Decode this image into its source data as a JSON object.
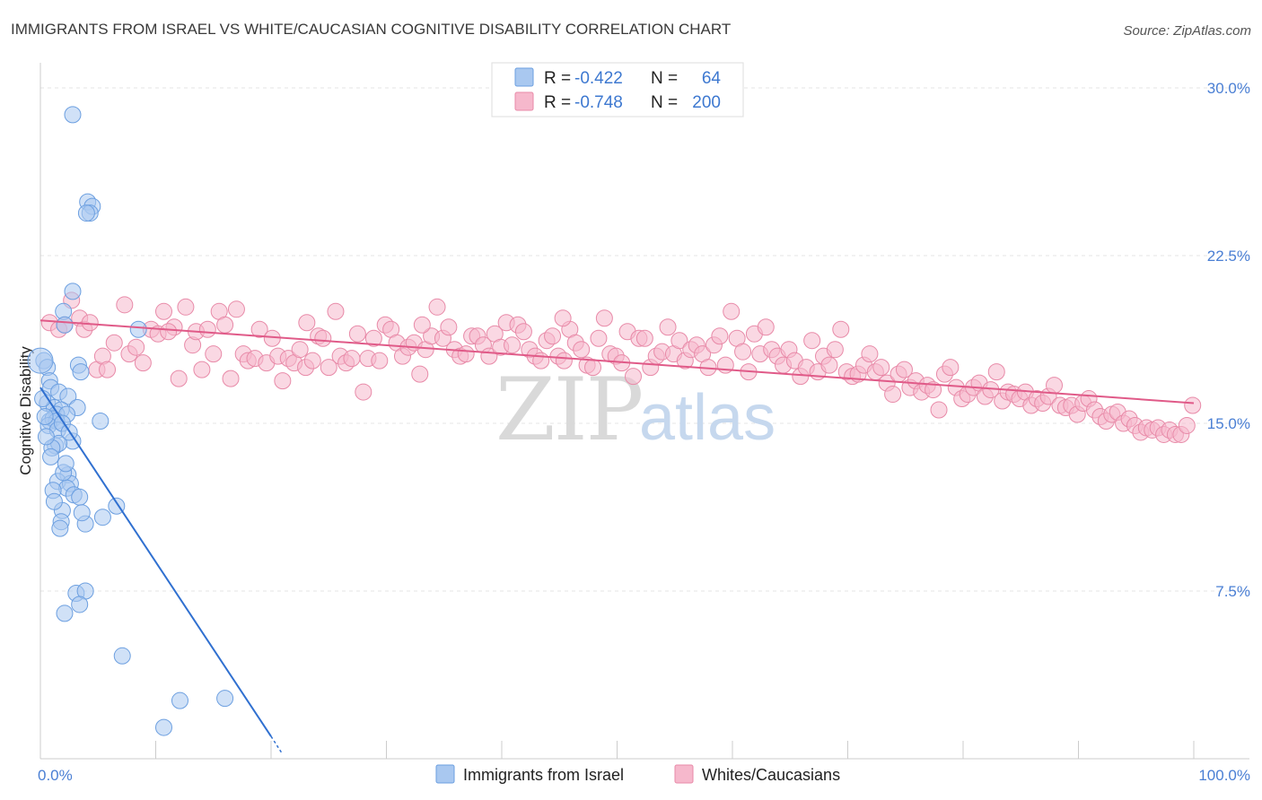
{
  "title": "IMMIGRANTS FROM ISRAEL VS WHITE/CAUCASIAN COGNITIVE DISABILITY CORRELATION CHART",
  "source": "Source: ZipAtlas.com",
  "watermark": {
    "part1": "ZIP",
    "part2": "atlas"
  },
  "colors": {
    "blue_fill": "#a9c8f0",
    "blue_stroke": "#6c9fe0",
    "blue_line": "#3070d0",
    "pink_fill": "#f6b8cc",
    "pink_stroke": "#e88aa8",
    "pink_line": "#e05a88",
    "axis_text": "#4a7fd4",
    "grid": "#e4e4e4"
  },
  "legend": {
    "rows": [
      {
        "r_label": "R = ",
        "r_value": "-0.422",
        "n_label": "N = ",
        "n_value": "64"
      },
      {
        "r_label": "R = ",
        "r_value": "-0.748",
        "n_label": "N = ",
        "n_value": "200"
      }
    ]
  },
  "bottom_legend": [
    "Immigrants from Israel",
    "Whites/Caucasians"
  ],
  "chart_data": {
    "type": "scatter",
    "title": "IMMIGRANTS FROM ISRAEL VS WHITE/CAUCASIAN COGNITIVE DISABILITY CORRELATION CHART",
    "xlabel": "",
    "ylabel": "Cognitive Disability",
    "xlim": [
      0,
      100
    ],
    "ylim": [
      0,
      30.8
    ],
    "y_ticks": [
      7.5,
      15.0,
      22.5,
      30.0
    ],
    "y_tick_labels": [
      "7.5%",
      "15.0%",
      "22.5%",
      "30.0%"
    ],
    "x_tick_labels": [
      "0.0%",
      "100.0%"
    ],
    "series": [
      {
        "name": "Immigrants from Israel",
        "R": -0.422,
        "N": 64,
        "points": [
          [
            2.8,
            28.8
          ],
          [
            4.1,
            24.9
          ],
          [
            4.5,
            24.7
          ],
          [
            4.3,
            24.4
          ],
          [
            4.0,
            24.4
          ],
          [
            2.8,
            20.9
          ],
          [
            2.0,
            20.0
          ],
          [
            2.1,
            19.4
          ],
          [
            8.5,
            19.2
          ],
          [
            0.3,
            17.8
          ],
          [
            0.6,
            17.5
          ],
          [
            3.3,
            17.6
          ],
          [
            3.5,
            17.3
          ],
          [
            0.8,
            16.9
          ],
          [
            0.9,
            16.6
          ],
          [
            1.6,
            16.4
          ],
          [
            2.4,
            16.2
          ],
          [
            0.6,
            15.9
          ],
          [
            1.2,
            15.7
          ],
          [
            1.8,
            15.6
          ],
          [
            3.2,
            15.7
          ],
          [
            1.4,
            15.4
          ],
          [
            2.3,
            15.4
          ],
          [
            0.8,
            15.1
          ],
          [
            1.1,
            15.2
          ],
          [
            1.4,
            15.1
          ],
          [
            5.2,
            15.1
          ],
          [
            0.7,
            14.9
          ],
          [
            1.5,
            14.7
          ],
          [
            2.8,
            14.2
          ],
          [
            1.3,
            14.0
          ],
          [
            1.6,
            14.1
          ],
          [
            1.0,
            13.9
          ],
          [
            2.4,
            12.7
          ],
          [
            1.5,
            12.4
          ],
          [
            2.6,
            12.3
          ],
          [
            2.3,
            12.1
          ],
          [
            1.1,
            12.0
          ],
          [
            2.9,
            11.8
          ],
          [
            3.4,
            11.7
          ],
          [
            6.6,
            11.3
          ],
          [
            1.9,
            11.1
          ],
          [
            5.4,
            10.8
          ],
          [
            1.8,
            10.6
          ],
          [
            3.9,
            10.5
          ],
          [
            1.7,
            10.3
          ],
          [
            3.1,
            7.4
          ],
          [
            3.9,
            7.5
          ],
          [
            3.4,
            6.9
          ],
          [
            2.1,
            6.5
          ],
          [
            7.1,
            4.6
          ],
          [
            12.1,
            2.6
          ],
          [
            16.0,
            2.7
          ],
          [
            10.7,
            1.4
          ],
          [
            0.2,
            16.1
          ],
          [
            0.4,
            15.3
          ],
          [
            1.9,
            15.0
          ],
          [
            2.5,
            14.6
          ],
          [
            0.9,
            13.5
          ],
          [
            2.0,
            12.8
          ],
          [
            1.2,
            11.5
          ],
          [
            3.6,
            11.0
          ],
          [
            0.5,
            14.4
          ],
          [
            2.2,
            13.2
          ]
        ],
        "trend": {
          "x0": 0,
          "y0": 16.6,
          "x1": 20.0,
          "y1": 1.0,
          "dash_to_x": 21.0,
          "dash_to_y": 0.2
        }
      },
      {
        "name": "Whites/Caucasians",
        "R": -0.748,
        "N": 200,
        "trend": {
          "x0": 0,
          "y0": 19.6,
          "x1": 100,
          "y1": 15.9
        },
        "points": [
          [
            0.8,
            19.5
          ],
          [
            1.6,
            19.2
          ],
          [
            2.1,
            19.4
          ],
          [
            2.7,
            20.5
          ],
          [
            3.4,
            19.7
          ],
          [
            3.8,
            19.2
          ],
          [
            4.3,
            19.5
          ],
          [
            4.9,
            17.4
          ],
          [
            5.4,
            18.0
          ],
          [
            5.8,
            17.4
          ],
          [
            6.4,
            18.6
          ],
          [
            7.3,
            20.3
          ],
          [
            7.7,
            18.1
          ],
          [
            8.3,
            18.4
          ],
          [
            8.9,
            17.7
          ],
          [
            9.6,
            19.2
          ],
          [
            10.2,
            19.0
          ],
          [
            10.7,
            20.0
          ],
          [
            11.6,
            19.3
          ],
          [
            12.0,
            17.0
          ],
          [
            12.6,
            20.2
          ],
          [
            13.2,
            18.5
          ],
          [
            13.5,
            19.1
          ],
          [
            14.0,
            17.4
          ],
          [
            14.5,
            19.2
          ],
          [
            15.0,
            18.1
          ],
          [
            15.5,
            20.0
          ],
          [
            16.0,
            19.4
          ],
          [
            16.5,
            17.0
          ],
          [
            17.0,
            20.1
          ],
          [
            17.6,
            18.1
          ],
          [
            18.0,
            17.8
          ],
          [
            18.6,
            17.9
          ],
          [
            19.0,
            19.2
          ],
          [
            19.6,
            17.7
          ],
          [
            20.1,
            18.8
          ],
          [
            20.6,
            18.0
          ],
          [
            21.0,
            16.9
          ],
          [
            21.5,
            17.9
          ],
          [
            22.0,
            17.7
          ],
          [
            22.5,
            18.3
          ],
          [
            23.0,
            17.5
          ],
          [
            23.6,
            17.8
          ],
          [
            24.1,
            18.9
          ],
          [
            24.5,
            18.8
          ],
          [
            25.0,
            17.5
          ],
          [
            25.6,
            20.0
          ],
          [
            26.0,
            18.0
          ],
          [
            26.5,
            17.7
          ],
          [
            27.0,
            17.9
          ],
          [
            27.5,
            19.0
          ],
          [
            28.0,
            16.4
          ],
          [
            28.4,
            17.9
          ],
          [
            28.9,
            18.8
          ],
          [
            29.4,
            17.8
          ],
          [
            29.9,
            19.4
          ],
          [
            30.4,
            19.2
          ],
          [
            30.9,
            18.6
          ],
          [
            31.4,
            18.0
          ],
          [
            31.9,
            18.4
          ],
          [
            32.4,
            18.6
          ],
          [
            32.9,
            17.2
          ],
          [
            33.4,
            18.3
          ],
          [
            33.9,
            18.9
          ],
          [
            34.4,
            20.2
          ],
          [
            34.9,
            18.8
          ],
          [
            35.4,
            19.3
          ],
          [
            35.9,
            18.3
          ],
          [
            36.4,
            18.0
          ],
          [
            36.9,
            18.1
          ],
          [
            37.4,
            18.9
          ],
          [
            37.9,
            18.9
          ],
          [
            38.4,
            18.5
          ],
          [
            38.9,
            18.0
          ],
          [
            39.4,
            19.0
          ],
          [
            39.9,
            18.4
          ],
          [
            40.4,
            19.5
          ],
          [
            40.9,
            18.5
          ],
          [
            41.4,
            19.4
          ],
          [
            41.9,
            19.1
          ],
          [
            42.4,
            18.3
          ],
          [
            42.9,
            18.0
          ],
          [
            43.4,
            17.8
          ],
          [
            43.9,
            18.7
          ],
          [
            44.4,
            18.9
          ],
          [
            44.9,
            18.0
          ],
          [
            45.4,
            17.8
          ],
          [
            45.9,
            19.2
          ],
          [
            46.4,
            18.6
          ],
          [
            46.9,
            18.3
          ],
          [
            47.4,
            17.6
          ],
          [
            47.9,
            17.5
          ],
          [
            48.4,
            18.8
          ],
          [
            48.9,
            19.7
          ],
          [
            49.4,
            18.1
          ],
          [
            49.9,
            18.0
          ],
          [
            50.4,
            17.7
          ],
          [
            50.9,
            19.1
          ],
          [
            51.4,
            17.1
          ],
          [
            51.9,
            18.8
          ],
          [
            52.4,
            18.8
          ],
          [
            52.9,
            17.5
          ],
          [
            53.4,
            18.0
          ],
          [
            53.9,
            18.2
          ],
          [
            54.4,
            19.3
          ],
          [
            54.9,
            18.1
          ],
          [
            55.4,
            18.7
          ],
          [
            55.9,
            17.8
          ],
          [
            56.4,
            18.3
          ],
          [
            56.9,
            18.5
          ],
          [
            57.4,
            18.1
          ],
          [
            57.9,
            17.5
          ],
          [
            58.4,
            18.5
          ],
          [
            58.9,
            18.9
          ],
          [
            59.4,
            17.6
          ],
          [
            59.9,
            20.0
          ],
          [
            60.4,
            18.8
          ],
          [
            60.9,
            18.2
          ],
          [
            61.4,
            17.3
          ],
          [
            61.9,
            19.0
          ],
          [
            62.4,
            18.1
          ],
          [
            62.9,
            19.3
          ],
          [
            63.4,
            18.3
          ],
          [
            63.9,
            18.0
          ],
          [
            64.4,
            17.6
          ],
          [
            64.9,
            18.3
          ],
          [
            65.4,
            17.8
          ],
          [
            65.9,
            17.1
          ],
          [
            66.4,
            17.5
          ],
          [
            66.9,
            18.7
          ],
          [
            67.4,
            17.3
          ],
          [
            67.9,
            18.0
          ],
          [
            68.4,
            17.6
          ],
          [
            68.9,
            18.3
          ],
          [
            69.4,
            19.2
          ],
          [
            69.9,
            17.3
          ],
          [
            70.4,
            17.1
          ],
          [
            70.9,
            17.2
          ],
          [
            71.4,
            17.6
          ],
          [
            71.9,
            18.1
          ],
          [
            72.4,
            17.3
          ],
          [
            72.9,
            17.5
          ],
          [
            73.4,
            16.8
          ],
          [
            73.9,
            16.3
          ],
          [
            74.4,
            17.2
          ],
          [
            74.9,
            17.4
          ],
          [
            75.4,
            16.6
          ],
          [
            75.9,
            16.9
          ],
          [
            76.4,
            16.4
          ],
          [
            76.9,
            16.7
          ],
          [
            77.4,
            16.5
          ],
          [
            77.9,
            15.6
          ],
          [
            78.4,
            17.2
          ],
          [
            78.9,
            17.5
          ],
          [
            79.4,
            16.6
          ],
          [
            79.9,
            16.1
          ],
          [
            80.4,
            16.3
          ],
          [
            80.9,
            16.6
          ],
          [
            81.4,
            16.8
          ],
          [
            81.9,
            16.2
          ],
          [
            82.4,
            16.5
          ],
          [
            82.9,
            17.3
          ],
          [
            83.4,
            16.0
          ],
          [
            83.9,
            16.4
          ],
          [
            84.4,
            16.3
          ],
          [
            84.9,
            16.1
          ],
          [
            85.4,
            16.4
          ],
          [
            85.9,
            15.8
          ],
          [
            86.4,
            16.1
          ],
          [
            86.9,
            15.9
          ],
          [
            87.4,
            16.2
          ],
          [
            87.9,
            16.7
          ],
          [
            88.4,
            15.8
          ],
          [
            88.9,
            15.7
          ],
          [
            89.4,
            15.8
          ],
          [
            89.9,
            15.4
          ],
          [
            90.4,
            15.9
          ],
          [
            90.9,
            16.1
          ],
          [
            91.4,
            15.6
          ],
          [
            91.9,
            15.3
          ],
          [
            92.4,
            15.1
          ],
          [
            92.9,
            15.4
          ],
          [
            93.4,
            15.5
          ],
          [
            93.9,
            15.0
          ],
          [
            94.4,
            15.2
          ],
          [
            94.9,
            14.9
          ],
          [
            95.4,
            14.6
          ],
          [
            95.9,
            14.8
          ],
          [
            96.4,
            14.7
          ],
          [
            96.9,
            14.8
          ],
          [
            97.4,
            14.5
          ],
          [
            97.9,
            14.7
          ],
          [
            98.4,
            14.5
          ],
          [
            98.9,
            14.5
          ],
          [
            99.4,
            14.9
          ],
          [
            99.9,
            15.8
          ],
          [
            11.1,
            19.1
          ],
          [
            23.1,
            19.5
          ],
          [
            33.1,
            19.4
          ],
          [
            45.3,
            19.7
          ]
        ]
      }
    ]
  }
}
